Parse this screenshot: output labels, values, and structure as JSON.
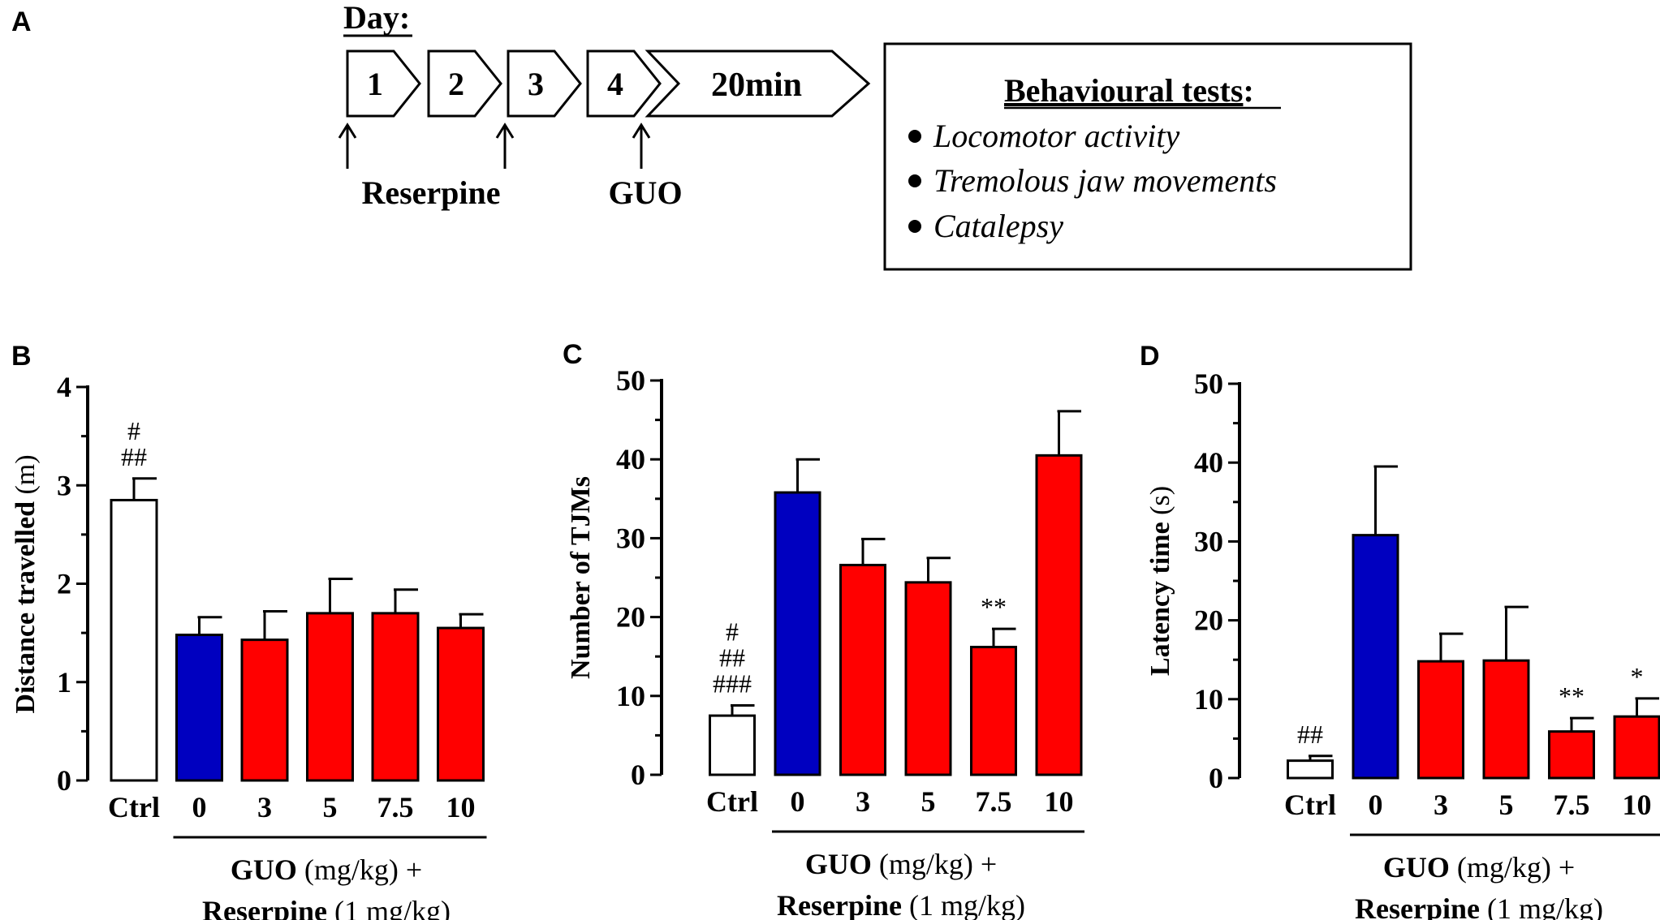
{
  "panel_a": {
    "letter": "A",
    "day_label": "Day:",
    "steps": [
      "1",
      "2",
      "3",
      "4",
      "20min"
    ],
    "reserpine_label": "Reserpine",
    "guo_label": "GUO",
    "tests_title": "Behavioural tests",
    "tests_colon": ":",
    "tests": [
      "Locomotor activity",
      "Tremolous jaw movements",
      "Catalepsy"
    ]
  },
  "group_label": {
    "guo": "GUO",
    "guo_unit": " (mg/kg) +",
    "reserpine": "Reserpine",
    "reserpine_unit": " (1 mg/kg)"
  },
  "colors": {
    "ctrl": "#ffffff",
    "vehicle": "#0000c0",
    "treated": "#ff0000",
    "axis": "#000000"
  },
  "chart_data": [
    {
      "letter": "B",
      "type": "bar",
      "ylabel": "Distance travelled",
      "ylabel_unit": " (m)",
      "ylim": [
        0,
        4
      ],
      "yticks": [
        "0",
        "1",
        "2",
        "3",
        "4"
      ],
      "categories": [
        "Ctrl",
        "0",
        "3",
        "5",
        "7.5",
        "10"
      ],
      "values": [
        2.85,
        1.48,
        1.43,
        1.7,
        1.7,
        1.55
      ],
      "errors": [
        0.22,
        0.18,
        0.29,
        0.35,
        0.24,
        0.14
      ],
      "fills": [
        "ctrl",
        "vehicle",
        "treated",
        "treated",
        "treated",
        "treated"
      ],
      "annotations": [
        [
          "#",
          "##"
        ],
        [],
        [],
        [],
        [],
        []
      ]
    },
    {
      "letter": "C",
      "type": "bar",
      "ylabel": "Number of TJMs",
      "ylabel_unit": "",
      "ylim": [
        0,
        50
      ],
      "yticks": [
        "0",
        "10",
        "20",
        "30",
        "40",
        "50"
      ],
      "categories": [
        "Ctrl",
        "0",
        "3",
        "5",
        "7.5",
        "10"
      ],
      "values": [
        7.5,
        35.8,
        26.6,
        24.4,
        16.2,
        40.5
      ],
      "errors": [
        1.3,
        4.2,
        3.3,
        3.1,
        2.3,
        5.6
      ],
      "fills": [
        "ctrl",
        "vehicle",
        "treated",
        "treated",
        "treated",
        "treated"
      ],
      "annotations": [
        [
          "#",
          "##",
          "###"
        ],
        [],
        [],
        [],
        [
          "**"
        ],
        []
      ]
    },
    {
      "letter": "D",
      "type": "bar",
      "ylabel": "Latency time",
      "ylabel_unit": " (s)",
      "ylim": [
        0,
        50
      ],
      "yticks": [
        "0",
        "10",
        "20",
        "30",
        "40",
        "50"
      ],
      "categories": [
        "Ctrl",
        "0",
        "3",
        "5",
        "7.5",
        "10"
      ],
      "values": [
        2.2,
        30.8,
        14.8,
        14.9,
        5.9,
        7.8
      ],
      "errors": [
        0.6,
        8.7,
        3.5,
        6.8,
        1.7,
        2.3
      ],
      "fills": [
        "ctrl",
        "vehicle",
        "treated",
        "treated",
        "treated",
        "treated"
      ],
      "annotations": [
        [
          "##"
        ],
        [],
        [],
        [],
        [
          "**"
        ],
        [
          "*"
        ]
      ]
    }
  ]
}
